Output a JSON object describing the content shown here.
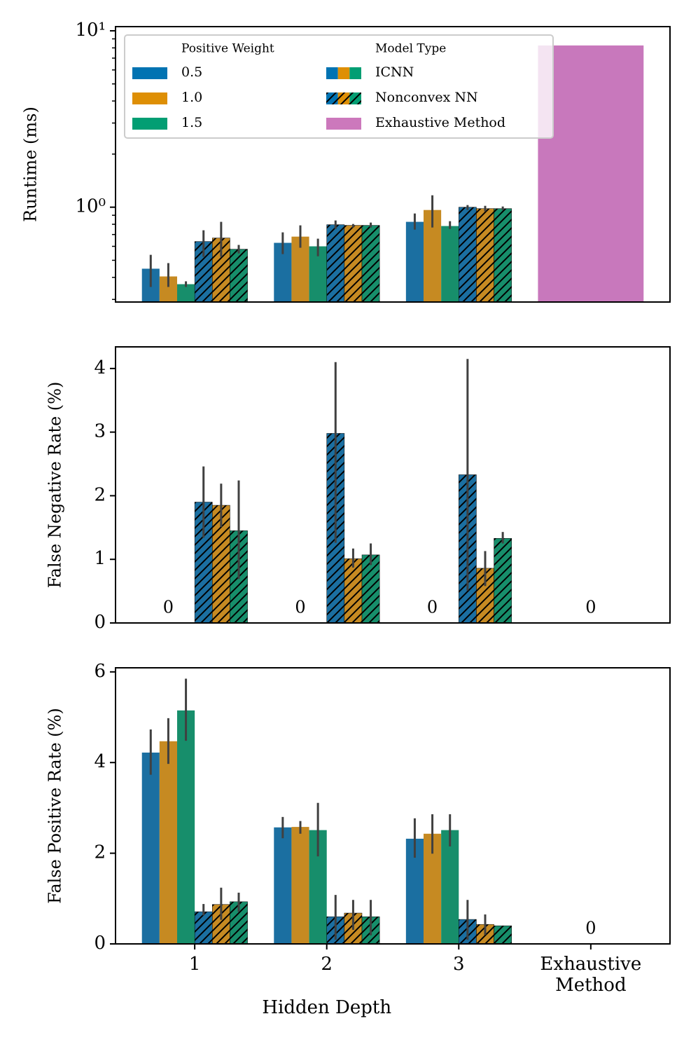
{
  "chart_data": [
    {
      "type": "bar",
      "ylabel": "Runtime (ms)",
      "log": true,
      "ylim": [
        0.29,
        10.56
      ],
      "yticks": [
        {
          "value": 1,
          "label": "10⁰"
        },
        {
          "value": 10,
          "label": "10¹"
        }
      ],
      "yminorticks": [
        0.3,
        0.4,
        0.5,
        0.6,
        0.7,
        0.8,
        0.9,
        2,
        3,
        4,
        5,
        6,
        7,
        8,
        9
      ],
      "legend": {
        "loc": "upper left",
        "groups": [
          {
            "title": "Positive Weight",
            "entries": [
              {
                "label": "0.5",
                "color": "#0173b2"
              },
              {
                "label": "1.0",
                "color": "#de8f05"
              },
              {
                "label": "1.5",
                "color": "#029e73"
              }
            ]
          },
          {
            "title": "Model Type",
            "entries": [
              {
                "label": "ICNN",
                "colors": [
                  "#0173b2",
                  "#de8f05",
                  "#029e73"
                ],
                "hatch": false
              },
              {
                "label": "Nonconvex NN",
                "colors": [
                  "#0173b2",
                  "#de8f05",
                  "#029e73"
                ],
                "hatch": true
              },
              {
                "label": "Exhaustive Method",
                "color": "#cc78bc"
              }
            ]
          }
        ]
      },
      "series": [
        {
          "color": "#1b6fa1",
          "hatch": false,
          "values": [
            0.448,
            0.628,
            0.826,
            null
          ],
          "error_low": [
            0.353,
            0.542,
            0.746,
            null
          ],
          "error_high": [
            0.537,
            0.72,
            0.921,
            null
          ]
        },
        {
          "color": "#c68a22",
          "hatch": false,
          "values": [
            0.405,
            0.681,
            0.964,
            null
          ],
          "error_low": [
            0.353,
            0.589,
            0.767,
            null
          ],
          "error_high": [
            0.482,
            0.789,
            1.168,
            null
          ]
        },
        {
          "color": "#178e6b",
          "hatch": false,
          "values": [
            0.366,
            0.6,
            0.782,
            null
          ],
          "error_low": [
            0.353,
            0.527,
            0.753,
            null
          ],
          "error_high": [
            0.38,
            0.663,
            0.833,
            null
          ]
        },
        {
          "color": "#1b6fa1",
          "hatch": true,
          "values": [
            0.639,
            0.796,
            1.0,
            null
          ],
          "error_low": [
            0.523,
            0.753,
            0.964,
            null
          ],
          "error_high": [
            0.74,
            0.841,
            1.028,
            null
          ]
        },
        {
          "color": "#c68a22",
          "hatch": true,
          "values": [
            0.669,
            0.789,
            0.982,
            null
          ],
          "error_low": [
            0.523,
            0.767,
            0.947,
            null
          ],
          "error_high": [
            0.826,
            0.803,
            1.018,
            null
          ]
        },
        {
          "color": "#178e6b",
          "hatch": true,
          "values": [
            0.578,
            0.789,
            0.982,
            null
          ],
          "error_low": [
            0.547,
            0.767,
            0.964,
            null
          ],
          "error_high": [
            0.611,
            0.818,
            1.009,
            null
          ]
        },
        {
          "color": "#c878bc",
          "hatch": false,
          "values": [
            null,
            null,
            null,
            8.26
          ]
        }
      ]
    },
    {
      "type": "bar",
      "ylabel": "False Negative Rate (%)",
      "ylim": [
        0,
        4.34
      ],
      "yticks": [
        0,
        1,
        2,
        3,
        4
      ],
      "series": [
        {
          "color": "#1b6fa1",
          "hatch": false,
          "values": [
            0,
            0,
            0,
            null
          ]
        },
        {
          "color": "#c68a22",
          "hatch": false,
          "values": [
            0,
            0,
            0,
            null
          ],
          "value_labels": [
            "0",
            "0",
            "0",
            null
          ]
        },
        {
          "color": "#178e6b",
          "hatch": false,
          "values": [
            0,
            0,
            0,
            null
          ]
        },
        {
          "color": "#1b6fa1",
          "hatch": true,
          "values": [
            1.9,
            2.98,
            2.33,
            null
          ],
          "error_low": [
            1.34,
            1.26,
            0.51,
            null
          ],
          "error_high": [
            2.46,
            4.1,
            4.15,
            null
          ]
        },
        {
          "color": "#c68a22",
          "hatch": true,
          "values": [
            1.85,
            1.01,
            0.86,
            null
          ],
          "error_low": [
            1.51,
            0.87,
            0.58,
            null
          ],
          "error_high": [
            2.19,
            1.17,
            1.13,
            null
          ]
        },
        {
          "color": "#178e6b",
          "hatch": true,
          "values": [
            1.45,
            1.07,
            1.33,
            null
          ],
          "error_low": [
            0.69,
            0.91,
            1.25,
            null
          ],
          "error_high": [
            2.24,
            1.25,
            1.43,
            null
          ]
        },
        {
          "color": "#c878bc",
          "hatch": false,
          "values": [
            null,
            null,
            null,
            0
          ],
          "value_labels": [
            null,
            null,
            null,
            "0"
          ]
        }
      ]
    },
    {
      "type": "bar",
      "ylabel": "False Positive Rate (%)",
      "xlabel": "Hidden Depth",
      "categories": [
        "1",
        "2",
        "3",
        "Exhaustive\nMethod"
      ],
      "ylim": [
        0,
        6.09
      ],
      "yticks": [
        0,
        2,
        4,
        6
      ],
      "series": [
        {
          "color": "#1b6fa1",
          "hatch": false,
          "values": [
            4.22,
            2.57,
            2.32,
            null
          ],
          "error_low": [
            3.73,
            2.33,
            1.9,
            null
          ],
          "error_high": [
            4.73,
            2.8,
            2.77,
            null
          ]
        },
        {
          "color": "#c68a22",
          "hatch": false,
          "values": [
            4.47,
            2.58,
            2.43,
            null
          ],
          "error_low": [
            3.97,
            2.43,
            1.99,
            null
          ],
          "error_high": [
            4.98,
            2.71,
            2.86,
            null
          ]
        },
        {
          "color": "#178e6b",
          "hatch": false,
          "values": [
            5.15,
            2.51,
            2.51,
            null
          ],
          "error_low": [
            4.48,
            1.93,
            2.15,
            null
          ],
          "error_high": [
            5.85,
            3.11,
            2.86,
            null
          ]
        },
        {
          "color": "#1b6fa1",
          "hatch": true,
          "values": [
            0.71,
            0.6,
            0.54,
            null
          ],
          "error_low": [
            0.63,
            0.09,
            0.09,
            null
          ],
          "error_high": [
            0.88,
            1.08,
            0.97,
            null
          ]
        },
        {
          "color": "#c68a22",
          "hatch": true,
          "values": [
            0.87,
            0.68,
            0.43,
            null
          ],
          "error_low": [
            0.53,
            0.31,
            0.2,
            null
          ],
          "error_high": [
            1.24,
            0.97,
            0.65,
            null
          ]
        },
        {
          "color": "#178e6b",
          "hatch": true,
          "values": [
            0.93,
            0.6,
            0.4,
            null
          ],
          "error_low": [
            0.71,
            0.19,
            null,
            null
          ],
          "error_high": [
            1.13,
            0.97,
            null,
            null
          ]
        },
        {
          "color": "#c878bc",
          "hatch": false,
          "values": [
            null,
            null,
            null,
            0
          ],
          "value_labels": [
            null,
            null,
            null,
            "0"
          ]
        }
      ]
    }
  ]
}
